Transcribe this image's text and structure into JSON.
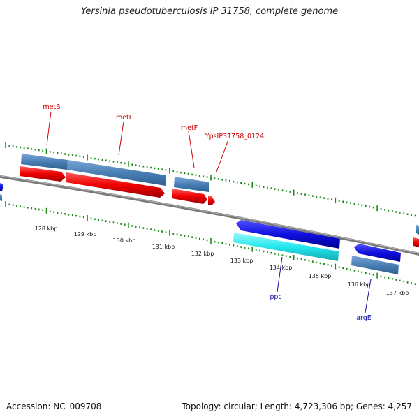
{
  "title": "Yersinia pseudotuberculosis IP 31758, complete genome",
  "footer": {
    "accession": "Accession: NC_009708",
    "summary": "Topology: circular; Length: 4,723,306 bp; Genes: 4,257"
  },
  "colors": {
    "gene_steelblue": "#4a7fb5",
    "cds_red": "#ee0000",
    "cds_blue": "#1010e0",
    "cds_cyan": "#22e8ee",
    "tick_green": "#1b8a1b",
    "backbone_gray": "#7a7a7a",
    "label_red": "#cc0000",
    "label_blue": "#1010a0"
  },
  "scale": {
    "labels": [
      "128 kbp",
      "129 kbp",
      "130 kbp",
      "131 kbp",
      "132 kbp",
      "133 kbp",
      "134 kbp",
      "135 kbp",
      "136 kbp",
      "137 kbp"
    ]
  },
  "features": {
    "forward": [
      {
        "name": "metB",
        "gene_color": "steelblue",
        "cds_color": "red"
      },
      {
        "name": "metL",
        "gene_color": "steelblue",
        "cds_color": "red"
      },
      {
        "name": "metF",
        "gene_color": "steelblue",
        "cds_color": "red"
      },
      {
        "name": "YpsIP31758_0124",
        "gene_color": "none",
        "cds_color": "red"
      }
    ],
    "reverse": [
      {
        "name": "ppc",
        "gene_color": "cyan",
        "cds_color": "blue"
      },
      {
        "name": "argE",
        "gene_color": "steelblue",
        "cds_color": "blue"
      }
    ]
  }
}
